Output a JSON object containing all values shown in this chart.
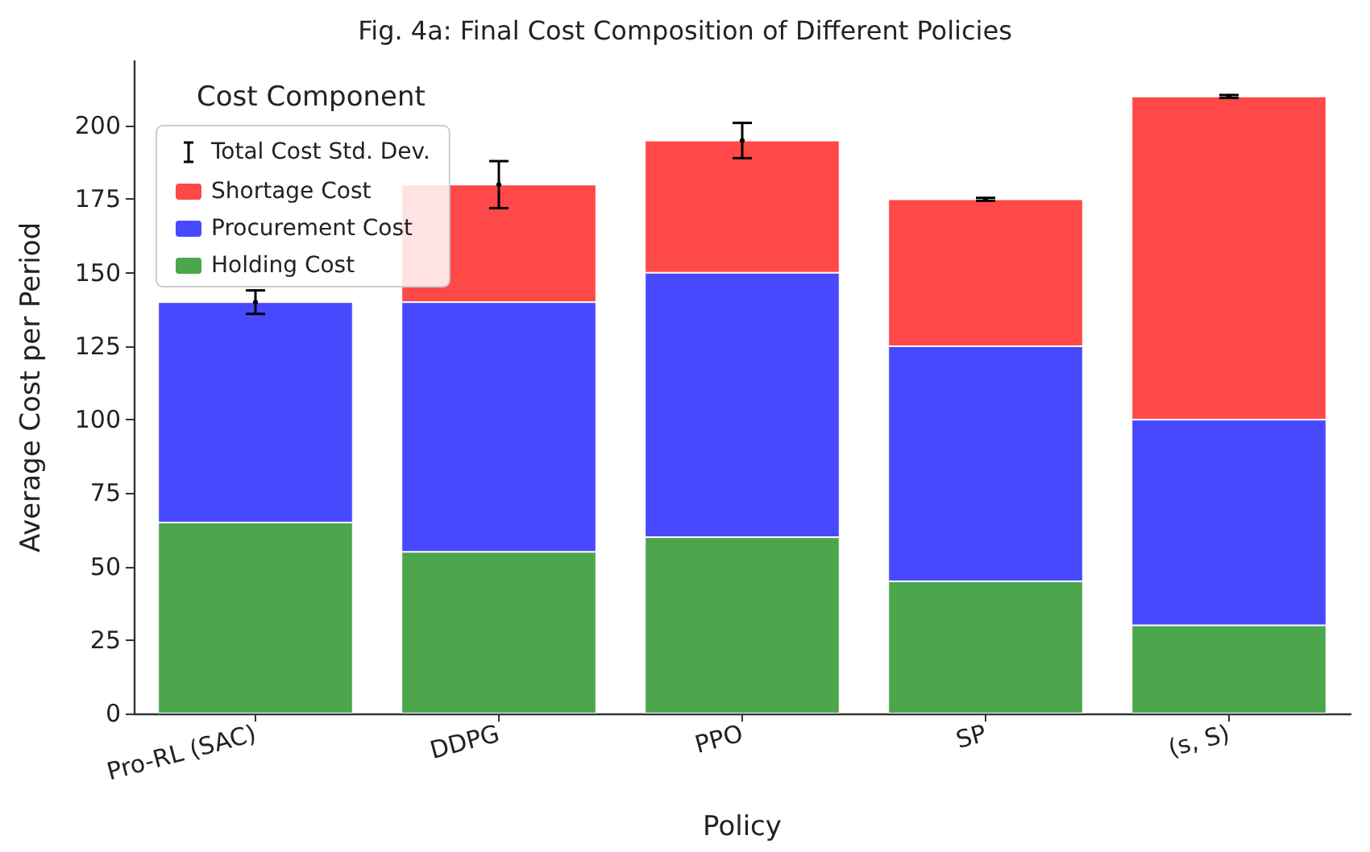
{
  "chart_data": {
    "type": "bar",
    "title": "Fig. 4a: Final Cost Composition of Different Policies",
    "xlabel": "Policy",
    "ylabel": "Average Cost per Period",
    "legend_title": "Cost Component",
    "categories": [
      "Pro-RL (SAC)",
      "DDPG",
      "PPO",
      "SP",
      "(s, S)"
    ],
    "stacked": true,
    "series": [
      {
        "name": "Holding Cost",
        "color": "#4ca64c",
        "values": [
          65,
          55,
          60,
          45,
          30
        ]
      },
      {
        "name": "Procurement Cost",
        "color": "#4848ff",
        "values": [
          75,
          85,
          90,
          80,
          70
        ]
      },
      {
        "name": "Shortage Cost",
        "color": "#ff4848",
        "values": [
          0,
          40,
          45,
          50,
          110
        ]
      },
      {
        "name": "Total Cost Std. Dev.",
        "type": "scatter",
        "color": "#000000",
        "x": [
          "Pro-RL (SAC)",
          "DDPG",
          "PPO",
          "SP",
          "(s, S)"
        ],
        "values": [
          140,
          180,
          195,
          175,
          210
        ],
        "errors": [
          4,
          8,
          6,
          0.5,
          0.5
        ]
      }
    ],
    "ylim": [
      0,
      222
    ],
    "yticks": [
      0,
      25,
      50,
      75,
      100,
      125,
      150,
      175,
      200
    ],
    "grid": false,
    "legend": "top left"
  }
}
